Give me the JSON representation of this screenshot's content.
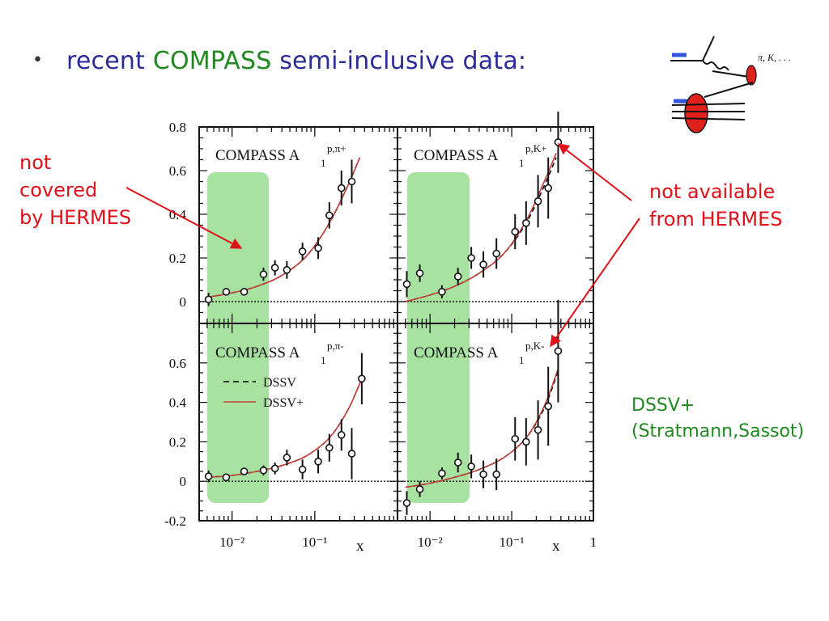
{
  "slide": {
    "bullet": "•",
    "title_part1": "recent",
    "title_part2": "COMPASS",
    "title_part3": "semi-inclusive data:"
  },
  "annotations": {
    "left_line1": "not",
    "left_line2": "covered",
    "left_line3": "by HERMES",
    "right_line1": "not available",
    "right_line2": "from HERMES",
    "model_line1": "DSSV+",
    "model_line2": "(Stratmann,Sassot)"
  },
  "diagram": {
    "hadron_label": "π, K, . . ."
  },
  "colors": {
    "title_blue": "#2b2b9a",
    "title_green": "#1f8a1f",
    "annotation_red": "#e0101a",
    "shade_green": "#a8e2a0",
    "dssv_plus": "#c2403a",
    "dssv": "#000000"
  },
  "chart_data": [
    {
      "type": "scatter",
      "panel": "top-left",
      "label_main": "COMPASS A",
      "label_sub": "1",
      "label_sup": "p,π+",
      "xscale": "log",
      "xlim": [
        0.004,
        1
      ],
      "ylim": [
        -0.1,
        0.8
      ],
      "yticks": [
        "0.8",
        "0.6",
        "0.4",
        "0.2",
        "0"
      ],
      "ytick_values": [
        0.8,
        0.6,
        0.4,
        0.2,
        0
      ],
      "points": [
        {
          "x": 0.0052,
          "y": 0.01,
          "err": 0.03
        },
        {
          "x": 0.0085,
          "y": 0.045,
          "err": 0.015
        },
        {
          "x": 0.014,
          "y": 0.045,
          "err": 0.015
        },
        {
          "x": 0.024,
          "y": 0.125,
          "err": 0.03
        },
        {
          "x": 0.033,
          "y": 0.155,
          "err": 0.035
        },
        {
          "x": 0.046,
          "y": 0.145,
          "err": 0.04
        },
        {
          "x": 0.071,
          "y": 0.23,
          "err": 0.04
        },
        {
          "x": 0.11,
          "y": 0.245,
          "err": 0.05
        },
        {
          "x": 0.15,
          "y": 0.395,
          "err": 0.06
        },
        {
          "x": 0.21,
          "y": 0.52,
          "err": 0.08
        },
        {
          "x": 0.28,
          "y": 0.55,
          "err": 0.1
        }
      ],
      "series": [
        {
          "name": "DSSV",
          "x": [
            0.005,
            0.01,
            0.02,
            0.04,
            0.08,
            0.15,
            0.25,
            0.35
          ],
          "y": [
            0.02,
            0.04,
            0.07,
            0.12,
            0.21,
            0.36,
            0.53,
            0.66
          ]
        },
        {
          "name": "DSSV+",
          "x": [
            0.005,
            0.01,
            0.02,
            0.04,
            0.08,
            0.15,
            0.25,
            0.35
          ],
          "y": [
            0.02,
            0.04,
            0.07,
            0.12,
            0.21,
            0.36,
            0.53,
            0.66
          ]
        }
      ]
    },
    {
      "type": "scatter",
      "panel": "top-right",
      "label_main": "COMPASS A",
      "label_sub": "1",
      "label_sup": "p,K+",
      "xscale": "log",
      "xlim": [
        0.004,
        1
      ],
      "ylim": [
        -0.1,
        0.8
      ],
      "points": [
        {
          "x": 0.0052,
          "y": 0.08,
          "err": 0.06
        },
        {
          "x": 0.0075,
          "y": 0.13,
          "err": 0.04
        },
        {
          "x": 0.014,
          "y": 0.045,
          "err": 0.03
        },
        {
          "x": 0.022,
          "y": 0.115,
          "err": 0.04
        },
        {
          "x": 0.032,
          "y": 0.2,
          "err": 0.05
        },
        {
          "x": 0.045,
          "y": 0.17,
          "err": 0.06
        },
        {
          "x": 0.065,
          "y": 0.22,
          "err": 0.07
        },
        {
          "x": 0.11,
          "y": 0.32,
          "err": 0.08
        },
        {
          "x": 0.15,
          "y": 0.36,
          "err": 0.1
        },
        {
          "x": 0.21,
          "y": 0.46,
          "err": 0.12
        },
        {
          "x": 0.28,
          "y": 0.52,
          "err": 0.14
        },
        {
          "x": 0.37,
          "y": 0.73,
          "err": 0.14
        }
      ],
      "series": [
        {
          "name": "DSSV",
          "x": [
            0.005,
            0.01,
            0.02,
            0.04,
            0.08,
            0.15,
            0.25,
            0.35
          ],
          "y": [
            0.0,
            0.03,
            0.07,
            0.13,
            0.22,
            0.36,
            0.53,
            0.66
          ]
        },
        {
          "name": "DSSV+",
          "x": [
            0.005,
            0.01,
            0.02,
            0.04,
            0.08,
            0.15,
            0.25,
            0.35
          ],
          "y": [
            0.0,
            0.03,
            0.07,
            0.13,
            0.22,
            0.37,
            0.55,
            0.68
          ]
        }
      ]
    },
    {
      "type": "scatter",
      "panel": "bottom-left",
      "label_main": "COMPASS A",
      "label_sub": "1",
      "label_sup": "p,π-",
      "xscale": "log",
      "xlim": [
        0.004,
        1
      ],
      "ylim": [
        -0.2,
        0.8
      ],
      "yticks": [
        "0.6",
        "0.4",
        "0.2",
        "0",
        "-0.2"
      ],
      "ytick_values": [
        0.6,
        0.4,
        0.2,
        0,
        -0.2
      ],
      "xticks": [
        "10⁻²",
        "10⁻¹"
      ],
      "xtick_values": [
        0.01,
        0.1
      ],
      "xlabel": "x",
      "legend": [
        {
          "name": "DSSV",
          "style": "dashed"
        },
        {
          "name": "DSSV+",
          "style": "solid"
        }
      ],
      "points": [
        {
          "x": 0.0052,
          "y": 0.025,
          "err": 0.03
        },
        {
          "x": 0.0085,
          "y": 0.02,
          "err": 0.015
        },
        {
          "x": 0.014,
          "y": 0.05,
          "err": 0.015
        },
        {
          "x": 0.024,
          "y": 0.055,
          "err": 0.025
        },
        {
          "x": 0.033,
          "y": 0.065,
          "err": 0.03
        },
        {
          "x": 0.046,
          "y": 0.12,
          "err": 0.04
        },
        {
          "x": 0.071,
          "y": 0.06,
          "err": 0.05
        },
        {
          "x": 0.11,
          "y": 0.1,
          "err": 0.06
        },
        {
          "x": 0.15,
          "y": 0.17,
          "err": 0.07
        },
        {
          "x": 0.21,
          "y": 0.235,
          "err": 0.08
        },
        {
          "x": 0.28,
          "y": 0.14,
          "err": 0.13
        },
        {
          "x": 0.37,
          "y": 0.52,
          "err": 0.13
        }
      ],
      "series": [
        {
          "name": "DSSV",
          "x": [
            0.005,
            0.01,
            0.02,
            0.04,
            0.08,
            0.15,
            0.25,
            0.37
          ],
          "y": [
            0.02,
            0.03,
            0.05,
            0.08,
            0.13,
            0.22,
            0.36,
            0.52
          ]
        },
        {
          "name": "DSSV+",
          "x": [
            0.005,
            0.01,
            0.02,
            0.04,
            0.08,
            0.15,
            0.25,
            0.37
          ],
          "y": [
            0.02,
            0.03,
            0.05,
            0.08,
            0.13,
            0.22,
            0.36,
            0.52
          ]
        }
      ]
    },
    {
      "type": "scatter",
      "panel": "bottom-right",
      "label_main": "COMPASS A",
      "label_sub": "1",
      "label_sup": "p,K-",
      "xscale": "log",
      "xlim": [
        0.004,
        1
      ],
      "ylim": [
        -0.2,
        0.8
      ],
      "xticks": [
        "10⁻²",
        "10⁻¹",
        "1"
      ],
      "xtick_values": [
        0.01,
        0.1,
        1
      ],
      "xlabel": "x",
      "points": [
        {
          "x": 0.0052,
          "y": -0.11,
          "err": 0.06
        },
        {
          "x": 0.0075,
          "y": -0.04,
          "err": 0.04
        },
        {
          "x": 0.014,
          "y": 0.04,
          "err": 0.03
        },
        {
          "x": 0.022,
          "y": 0.095,
          "err": 0.05
        },
        {
          "x": 0.032,
          "y": 0.075,
          "err": 0.06
        },
        {
          "x": 0.045,
          "y": 0.035,
          "err": 0.07
        },
        {
          "x": 0.065,
          "y": 0.035,
          "err": 0.08
        },
        {
          "x": 0.11,
          "y": 0.215,
          "err": 0.11
        },
        {
          "x": 0.15,
          "y": 0.2,
          "err": 0.12
        },
        {
          "x": 0.21,
          "y": 0.26,
          "err": 0.15
        },
        {
          "x": 0.28,
          "y": 0.38,
          "err": 0.2
        },
        {
          "x": 0.37,
          "y": 0.66,
          "err": 0.26
        }
      ],
      "series": [
        {
          "name": "DSSV",
          "x": [
            0.005,
            0.01,
            0.02,
            0.04,
            0.08,
            0.15,
            0.25,
            0.37
          ],
          "y": [
            -0.03,
            -0.01,
            0.02,
            0.06,
            0.12,
            0.22,
            0.37,
            0.56
          ]
        },
        {
          "name": "DSSV+",
          "x": [
            0.005,
            0.01,
            0.02,
            0.04,
            0.08,
            0.15,
            0.25,
            0.37
          ],
          "y": [
            -0.03,
            -0.01,
            0.02,
            0.06,
            0.12,
            0.22,
            0.38,
            0.57
          ]
        }
      ]
    }
  ]
}
